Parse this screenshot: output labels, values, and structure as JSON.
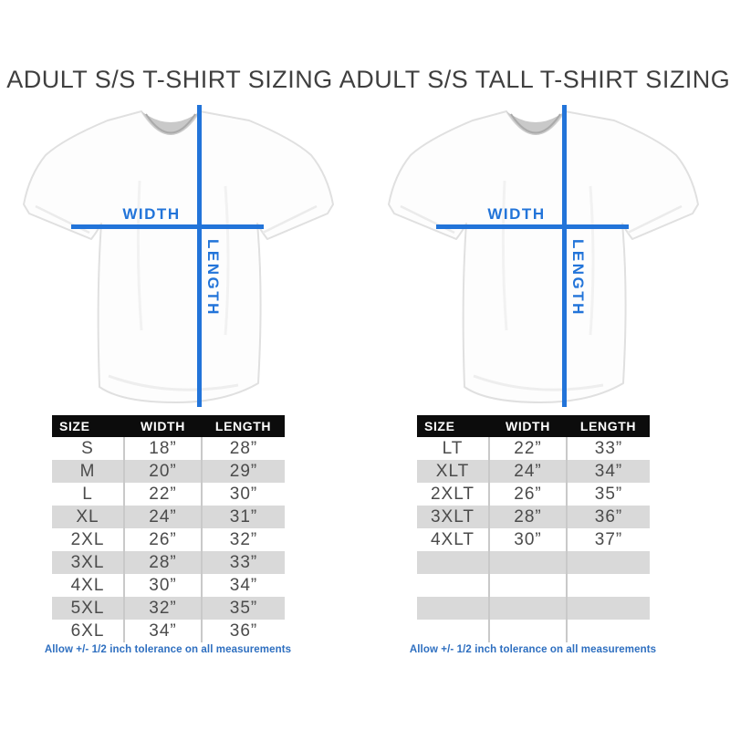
{
  "colors": {
    "accent-blue": "#2274d9",
    "note-blue": "#2e6fc0",
    "header-bg": "#0c0c0c",
    "header-text": "#ffffff",
    "row-alt": "#d9d9d9",
    "title-text": "#3f3f3f",
    "cell-text": "#4b4b4b"
  },
  "panels": [
    {
      "title": "ADULT S/S T-SHIRT SIZING",
      "diagram": {
        "width_label": "WIDTH",
        "length_label": "LENGTH"
      },
      "table": {
        "headers": [
          "SIZE",
          "WIDTH",
          "LENGTH"
        ],
        "rows": [
          [
            "S",
            "18”",
            "28”"
          ],
          [
            "M",
            "20”",
            "29”"
          ],
          [
            "L",
            "22”",
            "30”"
          ],
          [
            "XL",
            "24”",
            "31”"
          ],
          [
            "2XL",
            "26”",
            "32”"
          ],
          [
            "3XL",
            "28”",
            "33”"
          ],
          [
            "4XL",
            "30”",
            "34”"
          ],
          [
            "5XL",
            "32”",
            "35”"
          ],
          [
            "6XL",
            "34”",
            "36”"
          ]
        ]
      },
      "note": "Allow +/- 1/2 inch tolerance on all measurements"
    },
    {
      "title": "ADULT S/S TALL T-SHIRT SIZING",
      "diagram": {
        "width_label": "WIDTH",
        "length_label": "LENGTH"
      },
      "table": {
        "headers": [
          "SIZE",
          "WIDTH",
          "LENGTH"
        ],
        "rows": [
          [
            "LT",
            "22”",
            "33”"
          ],
          [
            "XLT",
            "24”",
            "34”"
          ],
          [
            "2XLT",
            "26”",
            "35”"
          ],
          [
            "3XLT",
            "28”",
            "36”"
          ],
          [
            "4XLT",
            "30”",
            "37”"
          ],
          [
            "",
            "",
            ""
          ],
          [
            "",
            "",
            ""
          ],
          [
            "",
            "",
            ""
          ],
          [
            "",
            "",
            ""
          ]
        ]
      },
      "note": "Allow +/- 1/2 inch tolerance on all measurements"
    }
  ]
}
